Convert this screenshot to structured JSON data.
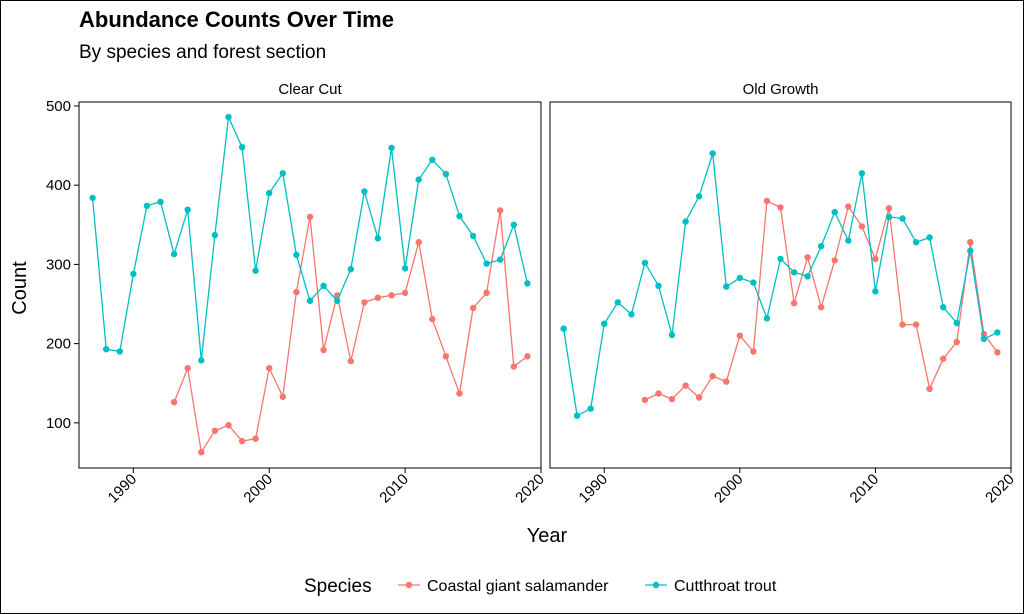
{
  "title": "Abundance Counts Over Time",
  "subtitle": "By species and forest section",
  "colors": {
    "salamander": "#F8766D",
    "trout": "#00BFC4"
  },
  "chart_data": {
    "type": "line",
    "xlabel": "Year",
    "ylabel": "Count",
    "xlim": [
      1986,
      2020
    ],
    "ylim": [
      43,
      505
    ],
    "x_ticks": [
      1990,
      2000,
      2010,
      2020
    ],
    "y_ticks": [
      100,
      200,
      300,
      400,
      500
    ],
    "grid": false,
    "legend": {
      "title": "Species",
      "position": "bottom",
      "entries": [
        "Coastal giant salamander",
        "Cutthroat trout"
      ]
    },
    "panels": [
      {
        "name": "Clear Cut",
        "series": [
          {
            "name": "Coastal giant salamander",
            "color": "#F8766D",
            "x": [
              1993,
              1994,
              1995,
              1996,
              1997,
              1998,
              1999,
              2000,
              2001,
              2002,
              2003,
              2004,
              2005,
              2006,
              2007,
              2008,
              2009,
              2010,
              2011,
              2012,
              2013,
              2014,
              2015,
              2016,
              2017,
              2018,
              2019
            ],
            "y": [
              126,
              169,
              63,
              90,
              97,
              77,
              80,
              169,
              133,
              265,
              360,
              192,
              261,
              178,
              252,
              258,
              261,
              264,
              328,
              231,
              184,
              137,
              245,
              264,
              368,
              171,
              184
            ]
          },
          {
            "name": "Cutthroat trout",
            "color": "#00BFC4",
            "x": [
              1987,
              1988,
              1989,
              1990,
              1991,
              1992,
              1993,
              1994,
              1995,
              1996,
              1997,
              1998,
              1999,
              2000,
              2001,
              2002,
              2003,
              2004,
              2005,
              2006,
              2007,
              2008,
              2009,
              2010,
              2011,
              2012,
              2013,
              2014,
              2015,
              2016,
              2017,
              2018,
              2019
            ],
            "y": [
              384,
              193,
              190,
              288,
              374,
              379,
              313,
              369,
              179,
              337,
              486,
              448,
              292,
              390,
              415,
              312,
              254,
              273,
              254,
              294,
              392,
              333,
              447,
              295,
              407,
              432,
              414,
              361,
              336,
              301,
              306,
              350,
              276
            ]
          }
        ]
      },
      {
        "name": "Old Growth",
        "series": [
          {
            "name": "Coastal giant salamander",
            "color": "#F8766D",
            "x": [
              1993,
              1994,
              1995,
              1996,
              1997,
              1998,
              1999,
              2000,
              2001,
              2002,
              2003,
              2004,
              2005,
              2006,
              2007,
              2008,
              2009,
              2010,
              2011,
              2012,
              2013,
              2014,
              2015,
              2016,
              2017,
              2018,
              2019
            ],
            "y": [
              129,
              137,
              130,
              147,
              132,
              159,
              152,
              210,
              190,
              380,
              372,
              251,
              309,
              246,
              305,
              373,
              348,
              307,
              371,
              224,
              224,
              143,
              181,
              202,
              328,
              212,
              189
            ]
          },
          {
            "name": "Cutthroat trout",
            "color": "#00BFC4",
            "x": [
              1987,
              1988,
              1989,
              1990,
              1991,
              1992,
              1993,
              1994,
              1995,
              1996,
              1997,
              1998,
              1999,
              2000,
              2001,
              2002,
              2003,
              2004,
              2005,
              2006,
              2007,
              2008,
              2009,
              2010,
              2011,
              2012,
              2013,
              2014,
              2015,
              2016,
              2017,
              2018,
              2019
            ],
            "y": [
              219,
              109,
              118,
              225,
              252,
              237,
              302,
              273,
              211,
              354,
              386,
              440,
              272,
              283,
              277,
              232,
              307,
              290,
              285,
              323,
              366,
              330,
              415,
              266,
              360,
              358,
              328,
              334,
              246,
              226,
              317,
              206,
              214
            ]
          }
        ]
      }
    ]
  }
}
